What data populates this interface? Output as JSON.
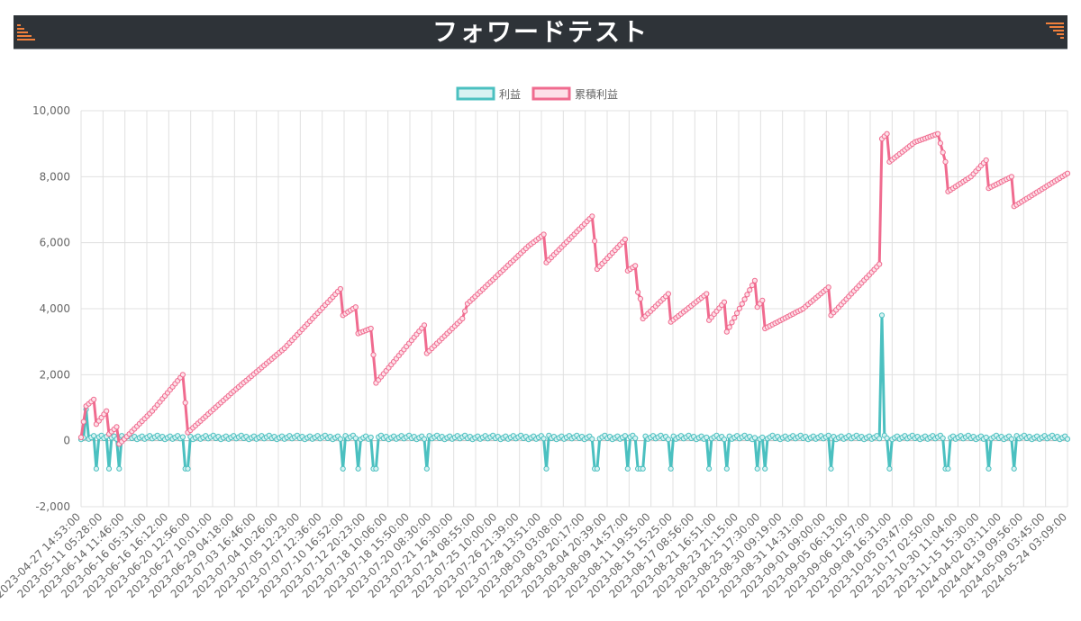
{
  "header": {
    "title": "フォワードテスト",
    "accent": "#f0803c"
  },
  "legend": {
    "profit_label": "利益",
    "cumulative_label": "累積利益"
  },
  "colors": {
    "profit": "#4bc0c0",
    "cumulative": "#f06b8f",
    "grid": "#e0e0e0"
  },
  "chart_data": {
    "type": "line",
    "title": "",
    "xlabel": "",
    "ylabel": "",
    "ylim": [
      -2000,
      10000
    ],
    "yticks": [
      "10,000",
      "8,000",
      "6,000",
      "4,000",
      "2,000",
      "0",
      "-2,000"
    ],
    "grid": true,
    "legend_position": "top-center",
    "x_labels": [
      "2023-04-27 14:53:00",
      "2023-05-11 05:28:00",
      "2023-06-14 11:46:00",
      "2023-06-16 05:31:00",
      "2023-06-16 16:12:00",
      "2023-06-20 12:56:00",
      "2023-06-27 10:01:00",
      "2023-06-29 04:18:00",
      "2023-07-03 16:46:00",
      "2023-07-04 10:26:00",
      "2023-07-05 12:23:00",
      "2023-07-07 12:36:00",
      "2023-07-10 16:52:00",
      "2023-07-12 20:23:00",
      "2023-07-18 10:06:00",
      "2023-07-18 15:50:00",
      "2023-07-20 08:30:00",
      "2023-07-21 16:30:00",
      "2023-07-24 08:55:00",
      "2023-07-25 10:00:00",
      "2023-07-26 21:39:00",
      "2023-07-28 13:51:00",
      "2023-08-03 03:08:00",
      "2023-08-03 20:17:00",
      "2023-08-04 20:39:00",
      "2023-08-09 14:57:00",
      "2023-08-11 19:55:00",
      "2023-08-15 15:25:00",
      "2023-08-17 08:56:00",
      "2023-08-21 16:51:00",
      "2023-08-23 21:15:00",
      "2023-08-25 17:30:00",
      "2023-08-30 09:19:00",
      "2023-08-31 14:31:00",
      "2023-09-01 09:00:00",
      "2023-09-05 06:13:00",
      "2023-09-06 12:57:00",
      "2023-09-08 16:31:00",
      "2023-10-05 03:47:00",
      "2023-10-17 02:50:00",
      "2023-10-30 11:04:00",
      "2023-11-15 15:30:00",
      "2024-04-02 03:11:00",
      "2024-04-19 09:56:00",
      "2024-05-09 03:45:00",
      "2024-05-24 03:09:00"
    ],
    "series": [
      {
        "name": "累積利益",
        "keypoints": [
          [
            0,
            100
          ],
          [
            2,
            1050
          ],
          [
            5,
            1250
          ],
          [
            6,
            500
          ],
          [
            10,
            900
          ],
          [
            11,
            200
          ],
          [
            14,
            420
          ],
          [
            15,
            -100
          ],
          [
            17,
            50
          ],
          [
            28,
            900
          ],
          [
            40,
            2000
          ],
          [
            41,
            1150
          ],
          [
            42,
            250
          ],
          [
            60,
            1500
          ],
          [
            80,
            2800
          ],
          [
            102,
            4600
          ],
          [
            103,
            3800
          ],
          [
            108,
            4050
          ],
          [
            109,
            3250
          ],
          [
            114,
            3400
          ],
          [
            115,
            2600
          ],
          [
            116,
            1750
          ],
          [
            135,
            3500
          ],
          [
            136,
            2650
          ],
          [
            150,
            3700
          ],
          [
            152,
            4150
          ],
          [
            176,
            5900
          ],
          [
            182,
            6250
          ],
          [
            183,
            5400
          ],
          [
            201,
            6800
          ],
          [
            202,
            6050
          ],
          [
            203,
            5200
          ],
          [
            214,
            6100
          ],
          [
            215,
            5150
          ],
          [
            218,
            5300
          ],
          [
            219,
            4500
          ],
          [
            220,
            4300
          ],
          [
            221,
            3700
          ],
          [
            231,
            4450
          ],
          [
            232,
            3600
          ],
          [
            246,
            4450
          ],
          [
            247,
            3650
          ],
          [
            253,
            4200
          ],
          [
            254,
            3300
          ],
          [
            265,
            4850
          ],
          [
            266,
            4050
          ],
          [
            268,
            4250
          ],
          [
            269,
            3400
          ],
          [
            284,
            4000
          ],
          [
            294,
            4650
          ],
          [
            295,
            3800
          ],
          [
            314,
            5350
          ],
          [
            315,
            9150
          ],
          [
            317,
            9300
          ],
          [
            318,
            8450
          ],
          [
            328,
            9050
          ],
          [
            337,
            9300
          ],
          [
            340,
            8450
          ],
          [
            341,
            7550
          ],
          [
            350,
            8000
          ],
          [
            356,
            8500
          ],
          [
            357,
            7650
          ],
          [
            366,
            8000
          ],
          [
            367,
            7100
          ],
          [
            388,
            8100
          ]
        ]
      },
      {
        "name": "利益",
        "base": 100,
        "spikes": [
          [
            2,
            950
          ],
          [
            6,
            -850
          ],
          [
            11,
            -850
          ],
          [
            15,
            -850
          ],
          [
            41,
            -850
          ],
          [
            42,
            -850
          ],
          [
            103,
            -850
          ],
          [
            109,
            -850
          ],
          [
            115,
            -850
          ],
          [
            116,
            -850
          ],
          [
            136,
            -850
          ],
          [
            183,
            -850
          ],
          [
            202,
            -850
          ],
          [
            203,
            -850
          ],
          [
            215,
            -850
          ],
          [
            219,
            -850
          ],
          [
            220,
            -850
          ],
          [
            221,
            -850
          ],
          [
            232,
            -850
          ],
          [
            247,
            -850
          ],
          [
            254,
            -850
          ],
          [
            266,
            -850
          ],
          [
            269,
            -850
          ],
          [
            295,
            -850
          ],
          [
            315,
            3800
          ],
          [
            318,
            -850
          ],
          [
            340,
            -850
          ],
          [
            341,
            -850
          ],
          [
            357,
            -850
          ],
          [
            367,
            -850
          ]
        ]
      }
    ]
  }
}
